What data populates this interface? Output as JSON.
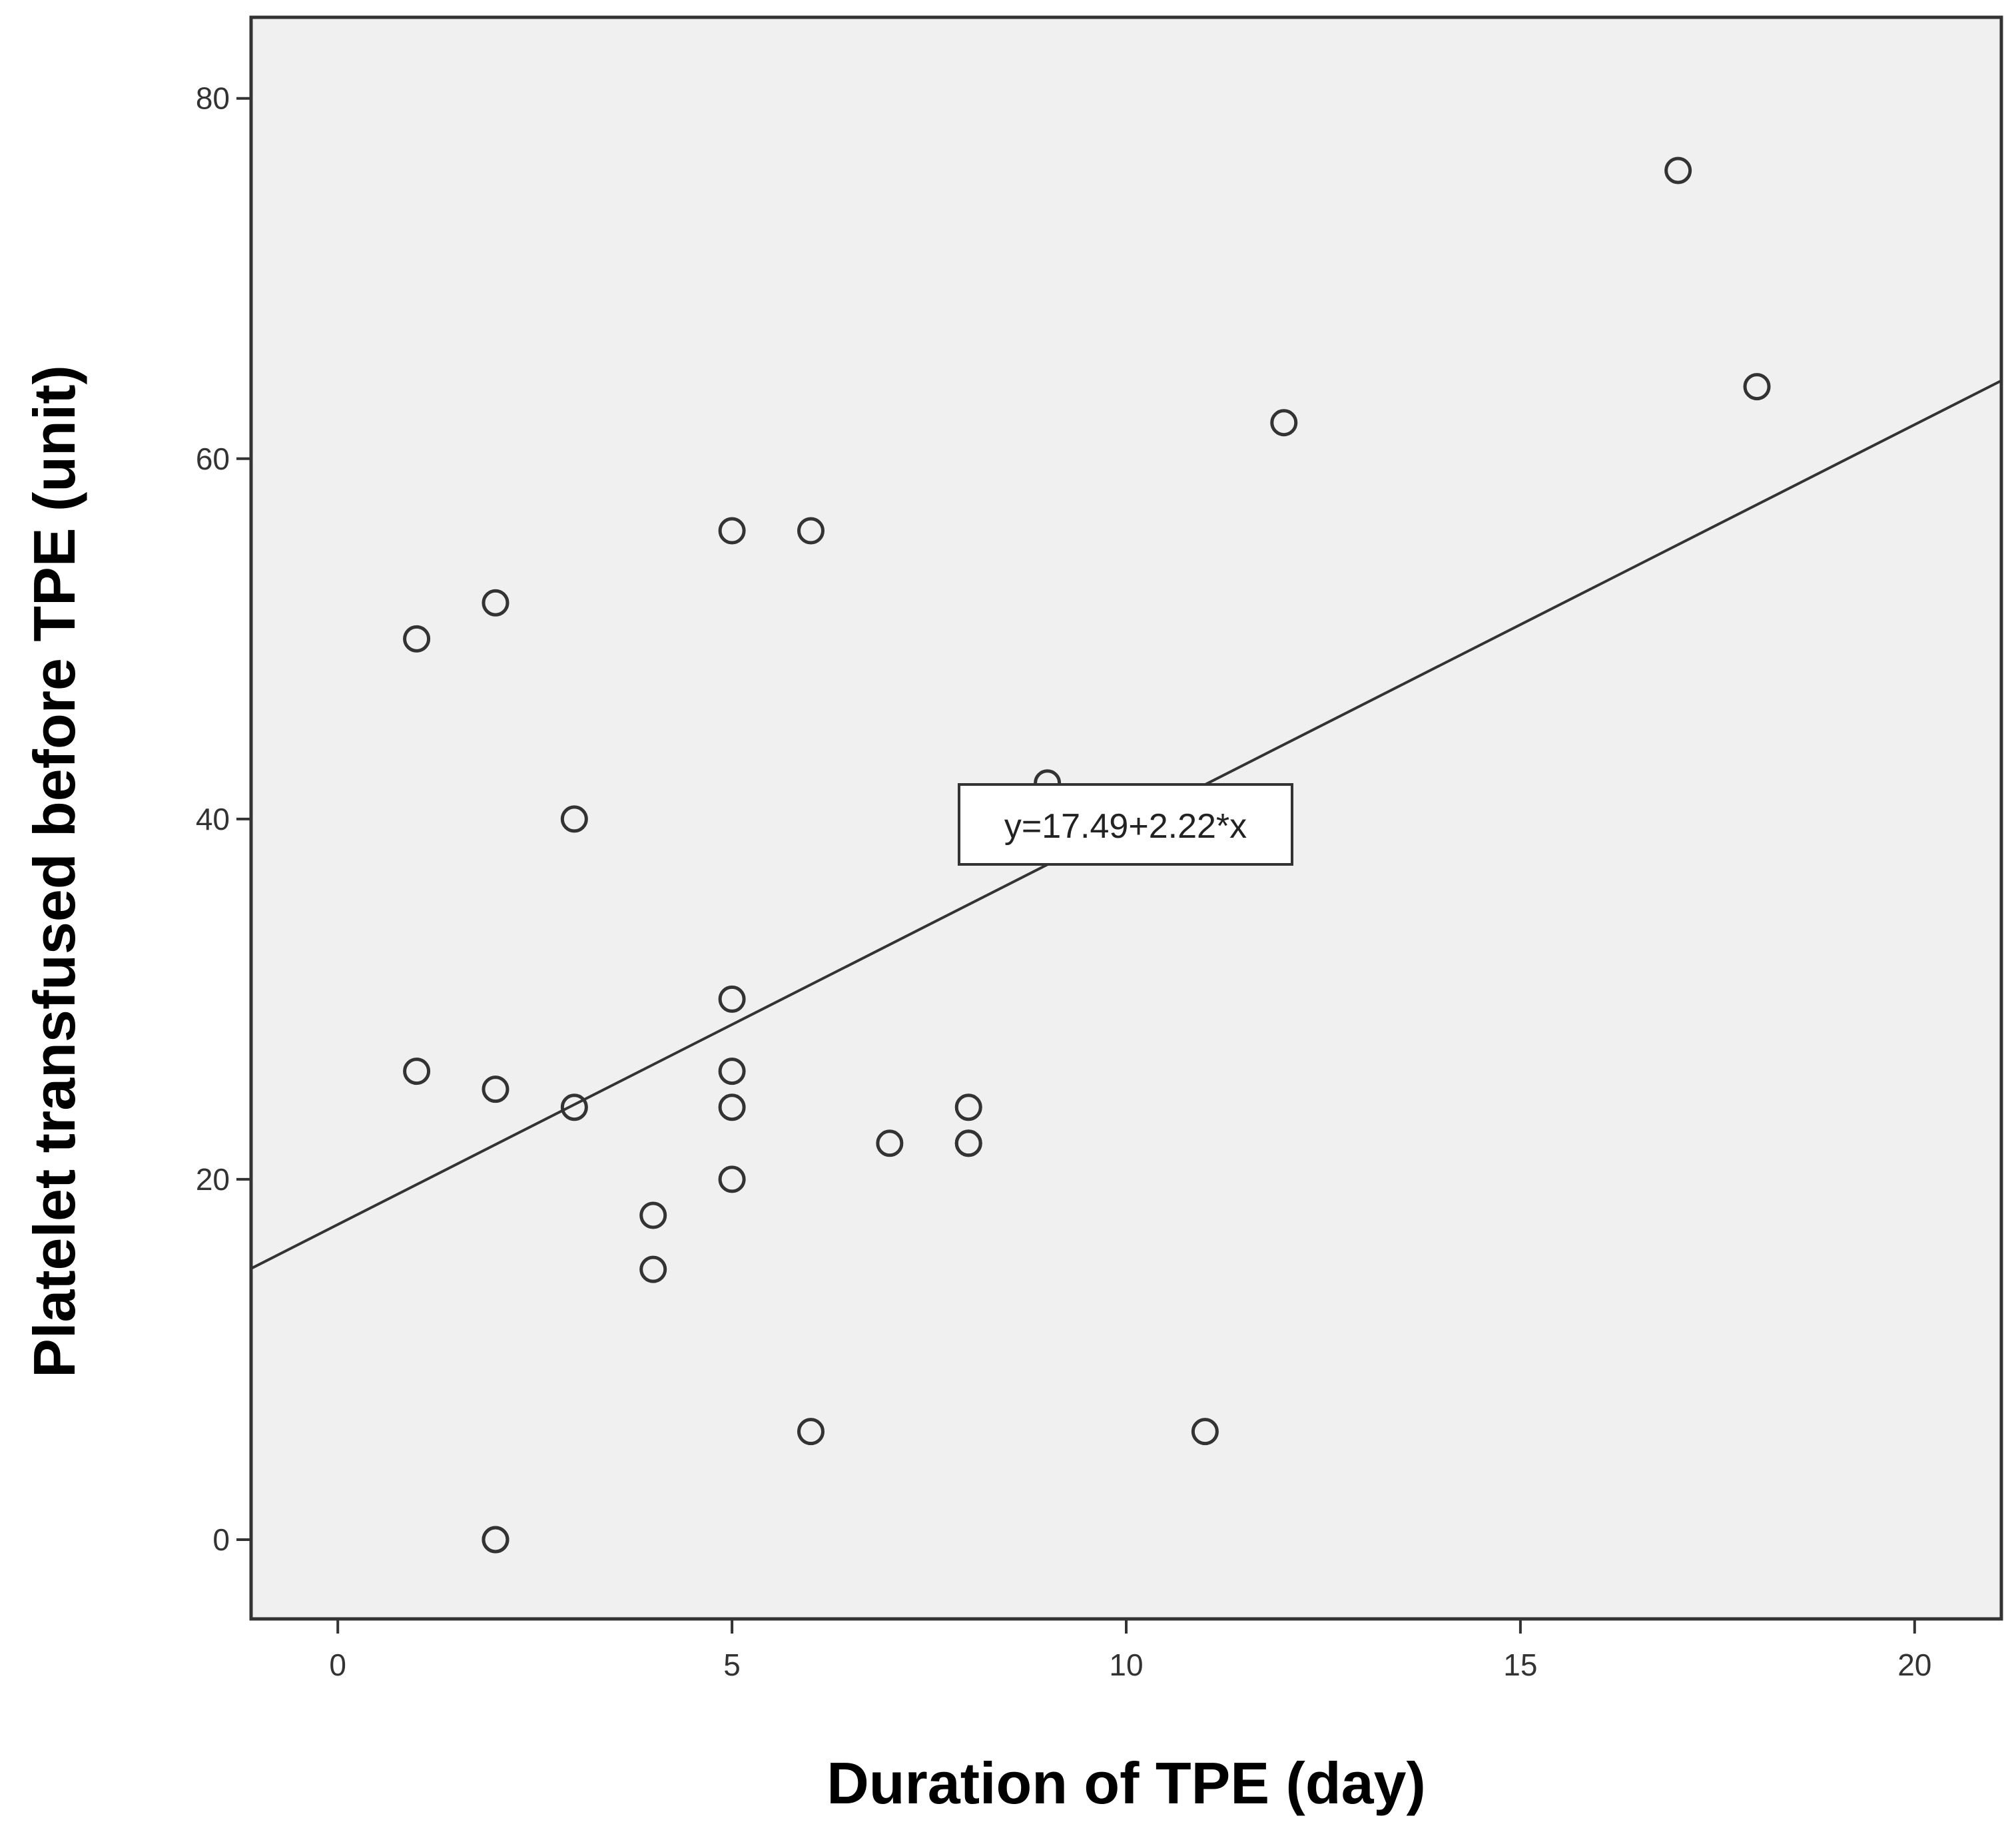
{
  "chart_data": {
    "type": "scatter",
    "xlabel": "Duration of TPE (day)",
    "ylabel": "Platelet transfused before TPE (unit)",
    "xlim": [
      -1.1,
      21.1
    ],
    "ylim": [
      -4.4,
      84.5
    ],
    "x_ticks": [
      0,
      5,
      10,
      15,
      20
    ],
    "y_ticks": [
      0,
      20,
      40,
      60,
      80
    ],
    "grid": false,
    "points": [
      {
        "x": 1,
        "y": 50
      },
      {
        "x": 1,
        "y": 26
      },
      {
        "x": 2,
        "y": 52
      },
      {
        "x": 2,
        "y": 25
      },
      {
        "x": 2,
        "y": 0
      },
      {
        "x": 2,
        "y": 0
      },
      {
        "x": 3,
        "y": 40
      },
      {
        "x": 3,
        "y": 24
      },
      {
        "x": 4,
        "y": 18
      },
      {
        "x": 4,
        "y": 15
      },
      {
        "x": 5,
        "y": 56
      },
      {
        "x": 5,
        "y": 30
      },
      {
        "x": 5,
        "y": 26
      },
      {
        "x": 5,
        "y": 24
      },
      {
        "x": 5,
        "y": 20
      },
      {
        "x": 6,
        "y": 56
      },
      {
        "x": 6,
        "y": 6
      },
      {
        "x": 7,
        "y": 22
      },
      {
        "x": 8,
        "y": 24
      },
      {
        "x": 8,
        "y": 22
      },
      {
        "x": 8,
        "y": 22
      },
      {
        "x": 9,
        "y": 42
      },
      {
        "x": 11,
        "y": 6
      },
      {
        "x": 12,
        "y": 62
      },
      {
        "x": 17,
        "y": 76
      },
      {
        "x": 18,
        "y": 64
      }
    ],
    "fit_line": {
      "intercept": 17.49,
      "slope": 2.22
    },
    "annotation": "y=17.49+2.22*x",
    "colors": {
      "plot_background": "#f0f0f0",
      "marker_stroke": "#333333",
      "line": "#333333",
      "frame": "#333333"
    }
  }
}
